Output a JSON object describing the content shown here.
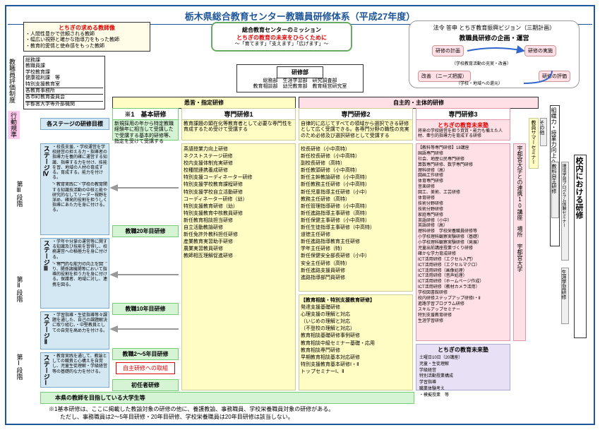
{
  "title": "栃木県総合教育センター教職員研修体系（平成27年度）",
  "teacher_ideal": {
    "hdr": "とちぎの求める教師像",
    "items": [
      "・人間性豊かで信頼される教師",
      "・幅広い視野と確かな指導力をもった教師",
      "・教育的愛情と使命感をもった教師"
    ]
  },
  "mission": {
    "hdr": "総合教育センターのミッション",
    "red": "とちぎの教育の未来をひらくために",
    "sub": "〜「育てます」「支えます」「広げます」〜"
  },
  "vision": {
    "hdr": "法令 答申 とちぎ教育振興ビジョン（三期計画）",
    "pdca_title": "教職員研修の企画・運営",
    "P": "改善\n（ニーズ把握）",
    "D": "研修の実施",
    "C": "研修の評価",
    "A": "研修の計画",
    "note1": "（学校教育活動の充実・改善）",
    "note2": "（学校・地域への還元）"
  },
  "training_dept": {
    "hdr": "研修部",
    "rows": [
      "総務部　生涯学習部　研究調査部",
      "教育相談部　幼児教育部　教育経営研究室"
    ]
  },
  "orgs": [
    "総務課",
    "教職員課",
    "学校教育課",
    "健康福利課　等",
    "特別支援教育室",
    "各教育事務所",
    "各市町教育委員会",
    "宇都宮大学等外部機関"
  ],
  "col_headers": {
    "left": "悉皆・指定研修",
    "right": "自主的・主体的研修",
    "basic": "※1　基本研修",
    "spec1": "専門研修1",
    "spec2": "専門研修2",
    "spec3": "専門研修3"
  },
  "stage_goal": "各ステージの研修目標",
  "basic_desc": "新規採用の年から特定教職経験年に相当して受講したで受講する基本的研修等、指定を受けて受講する",
  "spec1_desc": "教育課題の顕在化等教育者として必要な専門性を育成するため受けて受講する",
  "spec2_desc": "自律的に応じてすべての領域から選択できる研修として広く受講できる。各専門分野の職性の充実のため必修及び選択研修として受講する",
  "spec3_hdr": "とちぎの教育未来塾",
  "spec3_desc": "将来の学校経営を担う資質・能力も備えた人材、牽引的指導力を育成する研修",
  "stages": [
    {
      "n": "ステージⅣ",
      "desc": [
        "・校長支援、・学校運営を学校経営の担える力・指導者の指導力を養的確に運営する知識、指導する力を付け、技能を習、地域の人材の育成する。育成する。能力を付ける。",
        "・教育実践に・学校の教育関する知識技活動の中核と能や研究的なしてリーダー視野を深め、確発的役割を担うしく指導にあた力を身に付ける。る。"
      ]
    },
    {
      "n": "ステージⅢ",
      "desc": [
        "・学年や分掌の運営等に関する知識及び技能を習得し、校務運営への積極力を身に付ける。",
        "・専門的な能力の向上を図り、関係諸機関等において指導的役割を担う力を身に付ける。保護者、地域に対し、連携を図る。"
      ]
    },
    {
      "n": "ステージⅡ",
      "desc": [
        "・学習指導・生徒指導等々課題を通した、自己の課題解決に取り組む。・中堅教員としての自覚を高め力を付ける。"
      ]
    },
    {
      "n": "ステージⅠ",
      "desc": [
        "・教育実践を通して、教諭としての職責と心構えを自覚し、児童生徒理解・学級経営等の基礎的な力を付ける。"
      ]
    }
  ],
  "basic_training": [
    "教職20年目研修",
    "教職10年目研修",
    "教職2〜5年目研修",
    "自主研修への取組",
    "初任者研修"
  ],
  "spec1_items": [
    "英語授業力向上研修",
    "ネクストステージ研修",
    "校内支援体制充実研修",
    "校種間連携養成研修",
    "特別支援コーディネーター研修",
    "特別支援学校教育課程研修",
    "特別支援学校自立活動研修",
    "コーディネーター研修（幼）",
    "特別支援教育研修（幼）",
    "特別支援教育中核教員研修",
    "新任教育相談担当研修",
    "自立活動教諭研修",
    "新任免許外教科担任研修",
    "産業教育実習助手研修",
    "農業実習教員研修",
    "教師相互理解促進研修"
  ],
  "spec2a": [
    "校長研修（小中高特）",
    "新任校長研修（小中高特）",
    "副校長研修（高特）",
    "新任教頭研修（小中高特）",
    "新任主幹教諭研修（小中高特）",
    "新任教務主任研修（小中高特）",
    "新任児童指導主任研修（小中）",
    "教務主任研修（高特）",
    "新任管理指導研修（小中高特）",
    "新任進路指導主事研修（高特）",
    "新任保健主事研修（小中高特）",
    "新任生徒指導主事研修（中高特）",
    "道徳主任研修",
    "新任進路指導教育主任研修",
    "学年主任研修（特）",
    "新任保健安全部長研修（小中）",
    "安全主任研修（高特）",
    "新任進路支援員研修",
    "進路指導部門員研修"
  ],
  "spec2b_hdr": "【教育相談・特別支援教育研修】",
  "spec2b": [
    "発達支援基礎研修",
    "心理支援の理解と対応",
    "（いじめの理解と対応",
    "（不登校の理解と対応）",
    "教育相談基礎研修事例研修",
    "教育相談中級セミナー基礎・応用",
    "教育相談専門研修",
    "早期教育相談基本対応研修",
    "特別支援教育基本研修Ⅰ・Ⅱ",
    "トップセミナーⅠ、Ⅱ"
  ],
  "spec2c": [
    "【教科等専門研修】18講座",
    "国語専門研修",
    "社会、地歴公民専門研修",
    "算数専門研修、数学専門研修",
    "理科研修（高）",
    "図画工作研修",
    "体育専門研修",
    "音楽研修",
    "図工、美術、工芸研修",
    "体育研修",
    "技術分野研修",
    "技術分野研修",
    "家庭専門研修",
    "英語研修（小中）",
    "英語研修（高）",
    "理科研修　学校栄養職員研修等",
    "小学校理科観察実験研修（基礎）",
    "小学校理科観察実験研修（発展）",
    "児童出前講座授業づくり研修",
    "確かな学力育成研修",
    "ICT活用研修（エクセル入門）",
    "ICT活用研修（エクセルマクロ）",
    "ICT活用研修（画像処理）",
    "ICT活用研修（音声処理）",
    "ICT活用研修（ホームページ作成）",
    "ICT活用研修（教材カメラ活用）",
    "学校図書館研修",
    "校内研修ステップアップ研修Ⅰ・Ⅱ",
    "進路学習プログラム研修",
    "スキルアップセミナー",
    "特別支援教育研修",
    "生涯学習研修"
  ],
  "miraijuku": {
    "hdr": "とちぎの教育未来塾",
    "items": [
      "土曜日10日（20講座）",
      "児童・生徒理解",
      "学級経営",
      "特別活動授業構成",
      "学習指導",
      "職業体験考え",
      "・模擬授業　等"
    ]
  },
  "utsunomiya": "宇都宮大学との連携10講座　場所 宇都宮大学",
  "summer": "教員サマーセミナー",
  "other": "その他",
  "right_vert": [
    "組織力・授業力向上への支援",
    "教科自主研修",
    "環境学習プログラム体験セミナー",
    "生涯学習研修",
    "校内における研修"
  ],
  "left_vert": [
    "教職員評価制度",
    "行動規準",
    "第Ⅲ段階",
    "第Ⅱ段階",
    "第Ⅰ段階"
  ],
  "bottom_green": "本県の教師を目指している大学生等",
  "footer": [
    "※1基本研修は、ここに掲載した教諭対象の研修の他に、養護教諭、事務職員、学校栄養職員対象の研修がある。",
    "　　ただし、事務職員は2〜5年目研修・20年目研修、学校栄養職員は20年目研修は該当しない。"
  ]
}
